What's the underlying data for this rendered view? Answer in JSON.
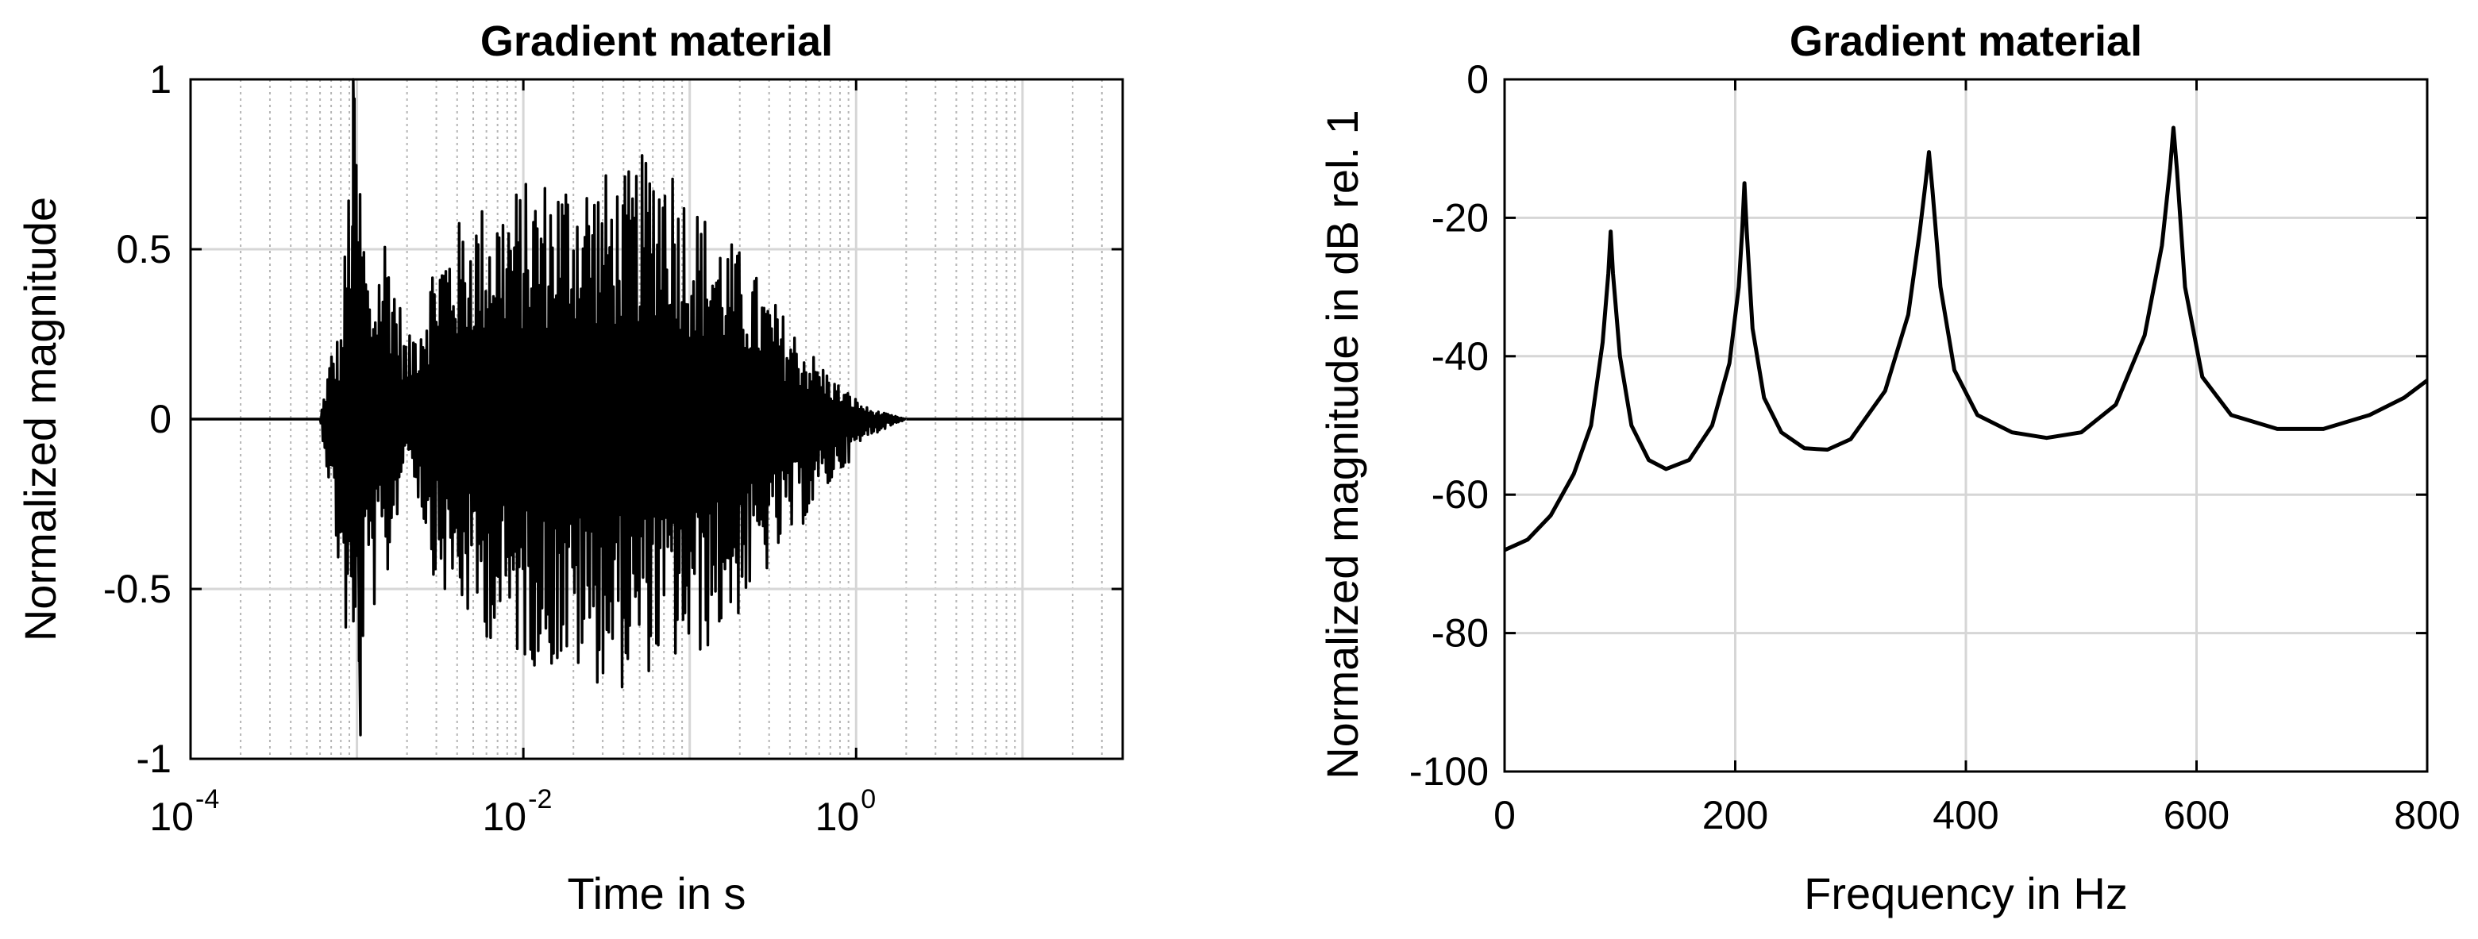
{
  "chart_data": [
    {
      "type": "line",
      "title": "Gradient material",
      "xlabel": "Time in s",
      "ylabel": "Normalized magnitude",
      "xscale": "log",
      "xlim": [
        0.0001,
        40
      ],
      "ylim": [
        -1,
        1
      ],
      "xticks": [
        {
          "base": "10",
          "exp": "-4",
          "value": 0.0001
        },
        {
          "base": "10",
          "exp": "-2",
          "value": 0.01
        },
        {
          "base": "10",
          "exp": "0",
          "value": 1
        }
      ],
      "yticks": [
        "-1",
        "-0.5",
        "0",
        "0.5",
        "1"
      ],
      "grid": true,
      "minor_grid": true,
      "line_color": "#000000",
      "series": [
        {
          "signal": "decaying oscillation",
          "onset_time": 0.0006,
          "first_peak": {
            "x": 0.00095,
            "y": 1.0
          },
          "first_trough": {
            "x": 0.00105,
            "y": -0.93
          },
          "envelope": [
            {
              "x": 0.0006,
              "max": 0.0,
              "min": 0.0
            },
            {
              "x": 0.0007,
              "max": 0.21,
              "min": -0.25
            },
            {
              "x": 0.0008,
              "max": 0.27,
              "min": -0.53
            },
            {
              "x": 0.00095,
              "max": 1.0,
              "min": -0.88
            },
            {
              "x": 0.0012,
              "max": 0.38,
              "min": -0.58
            },
            {
              "x": 0.0015,
              "max": 0.6,
              "min": -0.52
            },
            {
              "x": 0.002,
              "max": 0.22,
              "min": -0.08
            },
            {
              "x": 0.003,
              "max": 0.52,
              "min": -0.5
            },
            {
              "x": 0.005,
              "max": 0.63,
              "min": -0.62
            },
            {
              "x": 0.01,
              "max": 0.7,
              "min": -0.72
            },
            {
              "x": 0.02,
              "max": 0.75,
              "min": -0.76
            },
            {
              "x": 0.04,
              "max": 0.72,
              "min": -0.8
            },
            {
              "x": 0.07,
              "max": 0.85,
              "min": -0.72
            },
            {
              "x": 0.1,
              "max": 0.66,
              "min": -0.74
            },
            {
              "x": 0.2,
              "max": 0.5,
              "min": -0.58
            },
            {
              "x": 0.3,
              "max": 0.37,
              "min": -0.45
            },
            {
              "x": 0.5,
              "max": 0.22,
              "min": -0.3
            },
            {
              "x": 0.8,
              "max": 0.1,
              "min": -0.16
            },
            {
              "x": 1.2,
              "max": 0.03,
              "min": -0.05
            },
            {
              "x": 2.0,
              "max": 0.0,
              "min": 0.0
            }
          ]
        }
      ]
    },
    {
      "type": "line",
      "title": "Gradient material",
      "xlabel": "Frequency in Hz",
      "ylabel": "Normalized magnitude in dB rel. 1",
      "xlim": [
        0,
        800
      ],
      "ylim": [
        -100,
        0
      ],
      "xticks": [
        "0",
        "200",
        "400",
        "600",
        "800"
      ],
      "yticks": [
        "-100",
        "-80",
        "-60",
        "-40",
        "-20",
        "0"
      ],
      "grid": true,
      "line_color": "#000000",
      "series": [
        {
          "peaks": [
            {
              "x": 92,
              "y": -22
            },
            {
              "x": 208,
              "y": -15
            },
            {
              "x": 368,
              "y": -10.5
            },
            {
              "x": 580,
              "y": -7
            }
          ],
          "x": [
            0,
            20,
            40,
            60,
            75,
            85,
            90,
            92,
            94,
            100,
            110,
            125,
            140,
            160,
            180,
            195,
            203,
            206,
            208,
            210,
            215,
            225,
            240,
            260,
            280,
            300,
            330,
            350,
            360,
            365,
            368,
            371,
            378,
            390,
            410,
            440,
            470,
            500,
            530,
            555,
            570,
            577,
            580,
            583,
            590,
            605,
            630,
            670,
            710,
            750,
            780,
            800
          ],
          "y": [
            -68,
            -66.5,
            -63,
            -57,
            -50,
            -38,
            -28,
            -22,
            -28,
            -40,
            -50,
            -55,
            -56.3,
            -55,
            -50,
            -41,
            -30,
            -22,
            -15,
            -22,
            -36,
            -46,
            -51,
            -53.3,
            -53.5,
            -52,
            -45,
            -34,
            -22,
            -15,
            -10.5,
            -16,
            -30,
            -42,
            -48.5,
            -51,
            -51.8,
            -51,
            -47,
            -37,
            -24,
            -13,
            -7,
            -13,
            -30,
            -43,
            -48.5,
            -50.5,
            -50.5,
            -48.5,
            -46,
            -43.5
          ]
        }
      ]
    }
  ]
}
